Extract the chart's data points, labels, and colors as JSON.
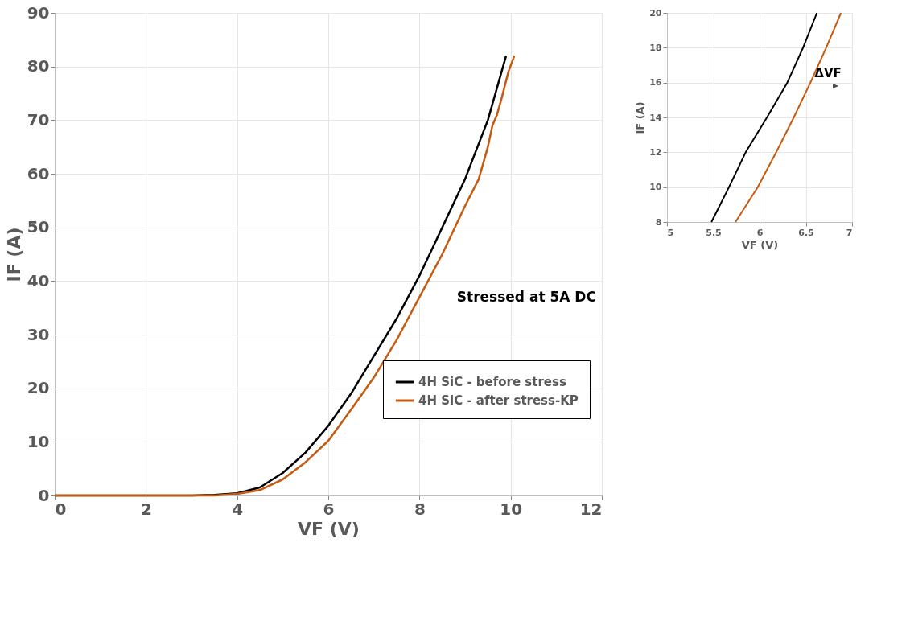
{
  "chart_data": [
    {
      "type": "line",
      "xlabel": "VF (V)",
      "ylabel": "IF (A)",
      "xlim": [
        0,
        12
      ],
      "ylim": [
        0,
        90
      ],
      "xticks": [
        0,
        2,
        4,
        6,
        8,
        10,
        12
      ],
      "yticks": [
        0,
        10,
        20,
        30,
        40,
        50,
        60,
        70,
        80,
        90
      ],
      "grid": true,
      "legend": "bottom right",
      "marker": "none",
      "line_style": "solid",
      "annotations": [
        "Stressed at 5A DC"
      ],
      "series": [
        {
          "name": "4H SiC - before stress",
          "color": "#000000",
          "x": [
            0,
            1,
            2,
            3,
            3.5,
            4,
            4.5,
            5,
            5.5,
            6,
            6.5,
            7,
            7.5,
            8,
            8.5,
            9,
            9.5,
            9.9
          ],
          "values": [
            0,
            0,
            0,
            0,
            0.1,
            0.4,
            1.5,
            4.2,
            8,
            13,
            19,
            26,
            33,
            41,
            50,
            59,
            70,
            82
          ]
        },
        {
          "name": "4H SiC - after stress-KP",
          "color": "#c55a11",
          "x": [
            0,
            1,
            2,
            3,
            3.5,
            4,
            4.5,
            5,
            5.5,
            6,
            6.5,
            7,
            7.5,
            8,
            8.5,
            9,
            9.3,
            9.5,
            9.6,
            9.7,
            9.8,
            9.95,
            10.08
          ],
          "values": [
            0,
            0,
            0,
            0,
            0,
            0.3,
            1.0,
            3.0,
            6.2,
            10.2,
            16,
            22,
            29,
            37,
            45,
            54,
            59,
            65,
            69,
            71,
            74,
            79,
            82
          ]
        }
      ]
    },
    {
      "type": "line",
      "xlabel": "VF (V)",
      "ylabel": "IF (A)",
      "xlim": [
        5,
        7
      ],
      "ylim": [
        8,
        20
      ],
      "xticks": [
        5,
        5.5,
        6,
        6.5,
        7
      ],
      "yticks": [
        8,
        10,
        12,
        14,
        16,
        18,
        20
      ],
      "grid": true,
      "marker": "none",
      "line_style": "solid",
      "annotations": [
        "ΔVF"
      ],
      "series": [
        {
          "color": "#000000",
          "x": [
            5.48,
            5.67,
            5.85,
            6.08,
            6.3,
            6.47,
            6.62
          ],
          "values": [
            8,
            10,
            12,
            14,
            16,
            18,
            20
          ]
        },
        {
          "color": "#c55a11",
          "x": [
            5.74,
            5.98,
            6.18,
            6.37,
            6.55,
            6.72,
            6.88
          ],
          "values": [
            8,
            10,
            12,
            14,
            16,
            18,
            20
          ]
        }
      ]
    }
  ]
}
